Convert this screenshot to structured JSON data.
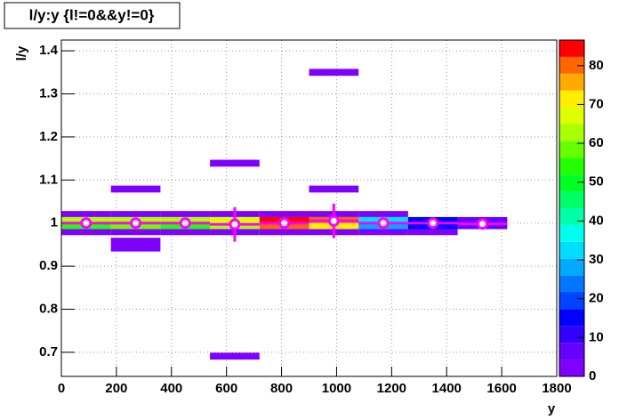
{
  "chart_data": {
    "type": "histogram2d",
    "title": "l/y:y {l!=0&&y!=0}",
    "x_label": "y",
    "y_label": "l/y",
    "xlim": [
      0,
      1800
    ],
    "ylim": [
      0.644,
      1.425
    ],
    "zlim": [
      0,
      86.6
    ],
    "xticks": [
      0,
      200,
      400,
      600,
      800,
      1000,
      1200,
      1400,
      1600,
      1800
    ],
    "yticks": [
      0.7,
      0.8,
      0.9,
      1,
      1.1,
      1.2,
      1.3,
      1.4
    ],
    "zticks": [
      0,
      10,
      20,
      30,
      40,
      50,
      60,
      70,
      80
    ],
    "grid": true,
    "palette": [
      "#7f00ff",
      "#6600ff",
      "#3300ff",
      "#0000ff",
      "#0044ff",
      "#0077ff",
      "#00aaff",
      "#00ddff",
      "#00ffee",
      "#00ffaa",
      "#00ff66",
      "#00ff22",
      "#22ff00",
      "#66ff00",
      "#aaff00",
      "#ddff00",
      "#ffee00",
      "#ffaa00",
      "#ff6600",
      "#ff0000"
    ],
    "cells": [
      {
        "x": [
          900,
          1080
        ],
        "y": [
          1.342,
          1.358
        ],
        "z": 1
      },
      {
        "x": [
          540,
          720
        ],
        "y": [
          1.131,
          1.147
        ],
        "z": 1
      },
      {
        "x": [
          180,
          360
        ],
        "y": [
          1.071,
          1.087
        ],
        "z": 1
      },
      {
        "x": [
          900,
          1080
        ],
        "y": [
          1.071,
          1.087
        ],
        "z": 1
      },
      {
        "x": [
          540,
          720
        ],
        "y": [
          0.683,
          0.699
        ],
        "z": 1
      },
      {
        "x": [
          180,
          360
        ],
        "y": [
          0.934,
          0.966
        ],
        "z": 2
      },
      {
        "x": [
          0,
          180
        ],
        "y": [
          1.014,
          1.028
        ],
        "z": 3
      },
      {
        "x": [
          180,
          360
        ],
        "y": [
          1.014,
          1.028
        ],
        "z": 3
      },
      {
        "x": [
          360,
          540
        ],
        "y": [
          1.014,
          1.028
        ],
        "z": 3
      },
      {
        "x": [
          540,
          720
        ],
        "y": [
          1.014,
          1.028
        ],
        "z": 3
      },
      {
        "x": [
          720,
          900
        ],
        "y": [
          1.014,
          1.028
        ],
        "z": 3
      },
      {
        "x": [
          900,
          1080
        ],
        "y": [
          1.014,
          1.028
        ],
        "z": 3
      },
      {
        "x": [
          1080,
          1260
        ],
        "y": [
          1.014,
          1.028
        ],
        "z": 3
      },
      {
        "x": [
          0,
          180
        ],
        "y": [
          1.0,
          1.014
        ],
        "z": 62
      },
      {
        "x": [
          180,
          360
        ],
        "y": [
          1.0,
          1.014
        ],
        "z": 62
      },
      {
        "x": [
          360,
          540
        ],
        "y": [
          1.0,
          1.014
        ],
        "z": 62
      },
      {
        "x": [
          540,
          720
        ],
        "y": [
          1.0,
          1.014
        ],
        "z": 65
      },
      {
        "x": [
          720,
          900
        ],
        "y": [
          1.0,
          1.014
        ],
        "z": 84
      },
      {
        "x": [
          900,
          1080
        ],
        "y": [
          1.0,
          1.014
        ],
        "z": 80
      },
      {
        "x": [
          1080,
          1260
        ],
        "y": [
          1.0,
          1.014
        ],
        "z": 32
      },
      {
        "x": [
          1260,
          1440
        ],
        "y": [
          1.0,
          1.014
        ],
        "z": 16
      },
      {
        "x": [
          1440,
          1620
        ],
        "y": [
          1.0,
          1.014
        ],
        "z": 8
      },
      {
        "x": [
          0,
          180
        ],
        "y": [
          0.986,
          1.0
        ],
        "z": 55
      },
      {
        "x": [
          180,
          360
        ],
        "y": [
          0.986,
          1.0
        ],
        "z": 57
      },
      {
        "x": [
          360,
          540
        ],
        "y": [
          0.986,
          1.0
        ],
        "z": 56
      },
      {
        "x": [
          540,
          720
        ],
        "y": [
          0.986,
          1.0
        ],
        "z": 64
      },
      {
        "x": [
          720,
          900
        ],
        "y": [
          0.986,
          1.0
        ],
        "z": 78
      },
      {
        "x": [
          900,
          1080
        ],
        "y": [
          0.986,
          1.0
        ],
        "z": 72
      },
      {
        "x": [
          1080,
          1260
        ],
        "y": [
          0.986,
          1.0
        ],
        "z": 28
      },
      {
        "x": [
          1260,
          1440
        ],
        "y": [
          0.986,
          1.0
        ],
        "z": 14
      },
      {
        "x": [
          1440,
          1620
        ],
        "y": [
          0.986,
          1.0
        ],
        "z": 6
      },
      {
        "x": [
          0,
          180
        ],
        "y": [
          0.972,
          0.986
        ],
        "z": 3
      },
      {
        "x": [
          180,
          360
        ],
        "y": [
          0.972,
          0.986
        ],
        "z": 3
      },
      {
        "x": [
          360,
          540
        ],
        "y": [
          0.972,
          0.986
        ],
        "z": 3
      },
      {
        "x": [
          540,
          720
        ],
        "y": [
          0.972,
          0.986
        ],
        "z": 3
      },
      {
        "x": [
          720,
          900
        ],
        "y": [
          0.972,
          0.986
        ],
        "z": 3
      },
      {
        "x": [
          900,
          1080
        ],
        "y": [
          0.972,
          0.986
        ],
        "z": 3
      },
      {
        "x": [
          1080,
          1260
        ],
        "y": [
          0.972,
          0.986
        ],
        "z": 3
      },
      {
        "x": [
          1260,
          1440
        ],
        "y": [
          0.972,
          0.986
        ],
        "z": 3
      }
    ],
    "profile": {
      "color": "#ff00ff",
      "x": [
        90,
        270,
        450,
        630,
        810,
        990,
        1170,
        1350,
        1530
      ],
      "xerr": [
        90,
        90,
        90,
        90,
        90,
        90,
        90,
        90,
        90
      ],
      "y": [
        1.0,
        1.0,
        1.0,
        0.997,
        1.0,
        1.005,
        1.0,
        1.0,
        0.998
      ],
      "yerr": [
        0.003,
        0.003,
        0.003,
        0.04,
        0.003,
        0.04,
        0.003,
        0.003,
        0.004
      ]
    }
  }
}
